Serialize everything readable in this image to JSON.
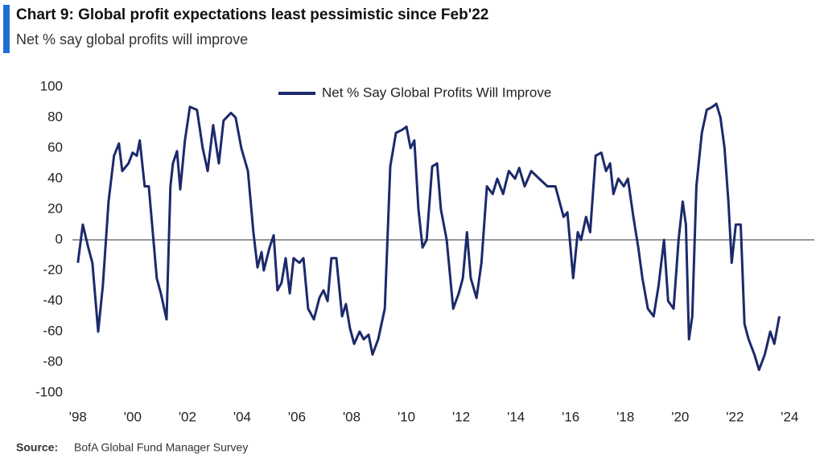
{
  "chart_data": {
    "type": "line",
    "title": "Chart 9: Global profit expectations least pessimistic since Feb'22",
    "subtitle": "Net % say global profits will improve",
    "source": {
      "label": "Source:",
      "text": "BofA Global Fund Manager Survey"
    },
    "legend": "top",
    "zero_line": true,
    "grid": false,
    "xlim": [
      1997.8,
      2024.9
    ],
    "ylim": [
      -100,
      100
    ],
    "yticks": [
      100,
      80,
      60,
      40,
      20,
      0,
      -20,
      -40,
      -60,
      -80,
      -100
    ],
    "xticks": [
      {
        "value": 1998,
        "label": "'98"
      },
      {
        "value": 2000,
        "label": "'00"
      },
      {
        "value": 2002,
        "label": "'02"
      },
      {
        "value": 2004,
        "label": "'04"
      },
      {
        "value": 2006,
        "label": "'06"
      },
      {
        "value": 2008,
        "label": "'08"
      },
      {
        "value": 2010,
        "label": "'10"
      },
      {
        "value": 2012,
        "label": "'12"
      },
      {
        "value": 2014,
        "label": "'14"
      },
      {
        "value": 2016,
        "label": "'16"
      },
      {
        "value": 2018,
        "label": "'18"
      },
      {
        "value": 2020,
        "label": "'20"
      },
      {
        "value": 2022,
        "label": "'22"
      },
      {
        "value": 2024,
        "label": "'24"
      }
    ],
    "x": [
      1998.0,
      1998.18,
      1998.38,
      1998.53,
      1998.74,
      1998.91,
      1999.12,
      1999.32,
      1999.5,
      1999.62,
      1999.85,
      2000.0,
      2000.15,
      2000.26,
      2000.44,
      2000.59,
      2000.88,
      2001.03,
      2001.24,
      2001.38,
      2001.47,
      2001.62,
      2001.74,
      2001.91,
      2002.09,
      2002.35,
      2002.56,
      2002.74,
      2002.94,
      2003.15,
      2003.32,
      2003.59,
      2003.76,
      2003.97,
      2004.21,
      2004.41,
      2004.56,
      2004.71,
      2004.79,
      2005.0,
      2005.15,
      2005.29,
      2005.44,
      2005.59,
      2005.74,
      2005.88,
      2006.09,
      2006.24,
      2006.41,
      2006.62,
      2006.82,
      2006.97,
      2007.12,
      2007.26,
      2007.44,
      2007.65,
      2007.79,
      2007.94,
      2008.09,
      2008.29,
      2008.44,
      2008.62,
      2008.76,
      2008.97,
      2009.21,
      2009.41,
      2009.62,
      2009.85,
      2010.0,
      2010.15,
      2010.29,
      2010.44,
      2010.59,
      2010.74,
      2010.94,
      2011.12,
      2011.26,
      2011.47,
      2011.71,
      2011.91,
      2012.06,
      2012.21,
      2012.35,
      2012.56,
      2012.74,
      2012.94,
      2013.15,
      2013.32,
      2013.53,
      2013.74,
      2013.97,
      2014.12,
      2014.32,
      2014.56,
      2014.85,
      2015.15,
      2015.44,
      2015.74,
      2015.88,
      2016.09,
      2016.26,
      2016.38,
      2016.56,
      2016.71,
      2016.91,
      2017.12,
      2017.29,
      2017.44,
      2017.56,
      2017.74,
      2017.94,
      2018.09,
      2018.29,
      2018.47,
      2018.62,
      2018.82,
      2019.03,
      2019.21,
      2019.41,
      2019.56,
      2019.76,
      2019.94,
      2020.09,
      2020.21,
      2020.32,
      2020.44,
      2020.59,
      2020.79,
      2020.97,
      2021.18,
      2021.32,
      2021.47,
      2021.62,
      2021.76,
      2021.88,
      2022.03,
      2022.21,
      2022.35,
      2022.5,
      2022.71,
      2022.88,
      2023.09,
      2023.29,
      2023.44,
      2023.62
    ],
    "series": [
      {
        "name": "Net % Say Global Profits Will Improve",
        "color": "#1c2a6b",
        "values": [
          -15,
          10,
          -5,
          -15,
          -60,
          -30,
          25,
          55,
          63,
          45,
          50,
          57,
          55,
          65,
          35,
          35,
          -25,
          -35,
          -52,
          35,
          50,
          58,
          33,
          65,
          87,
          85,
          60,
          45,
          75,
          50,
          78,
          83,
          80,
          60,
          45,
          5,
          -18,
          -8,
          -20,
          -5,
          3,
          -33,
          -28,
          -12,
          -35,
          -12,
          -15,
          -12,
          -45,
          -52,
          -38,
          -33,
          -40,
          -12,
          -12,
          -50,
          -42,
          -58,
          -68,
          -60,
          -65,
          -62,
          -75,
          -65,
          -45,
          48,
          70,
          72,
          74,
          60,
          65,
          20,
          -5,
          0,
          48,
          50,
          20,
          0,
          -45,
          -35,
          -25,
          5,
          -25,
          -38,
          -15,
          35,
          30,
          40,
          30,
          45,
          40,
          47,
          35,
          45,
          40,
          35,
          35,
          15,
          18,
          -25,
          5,
          0,
          15,
          5,
          55,
          57,
          45,
          50,
          30,
          40,
          35,
          40,
          15,
          -5,
          -25,
          -45,
          -50,
          -30,
          0,
          -40,
          -45,
          0,
          25,
          10,
          -65,
          -50,
          35,
          70,
          85,
          87,
          89,
          80,
          60,
          25,
          -15,
          10,
          10,
          -55,
          -65,
          -75,
          -85,
          -75,
          -60,
          -68,
          -50
        ]
      }
    ]
  }
}
